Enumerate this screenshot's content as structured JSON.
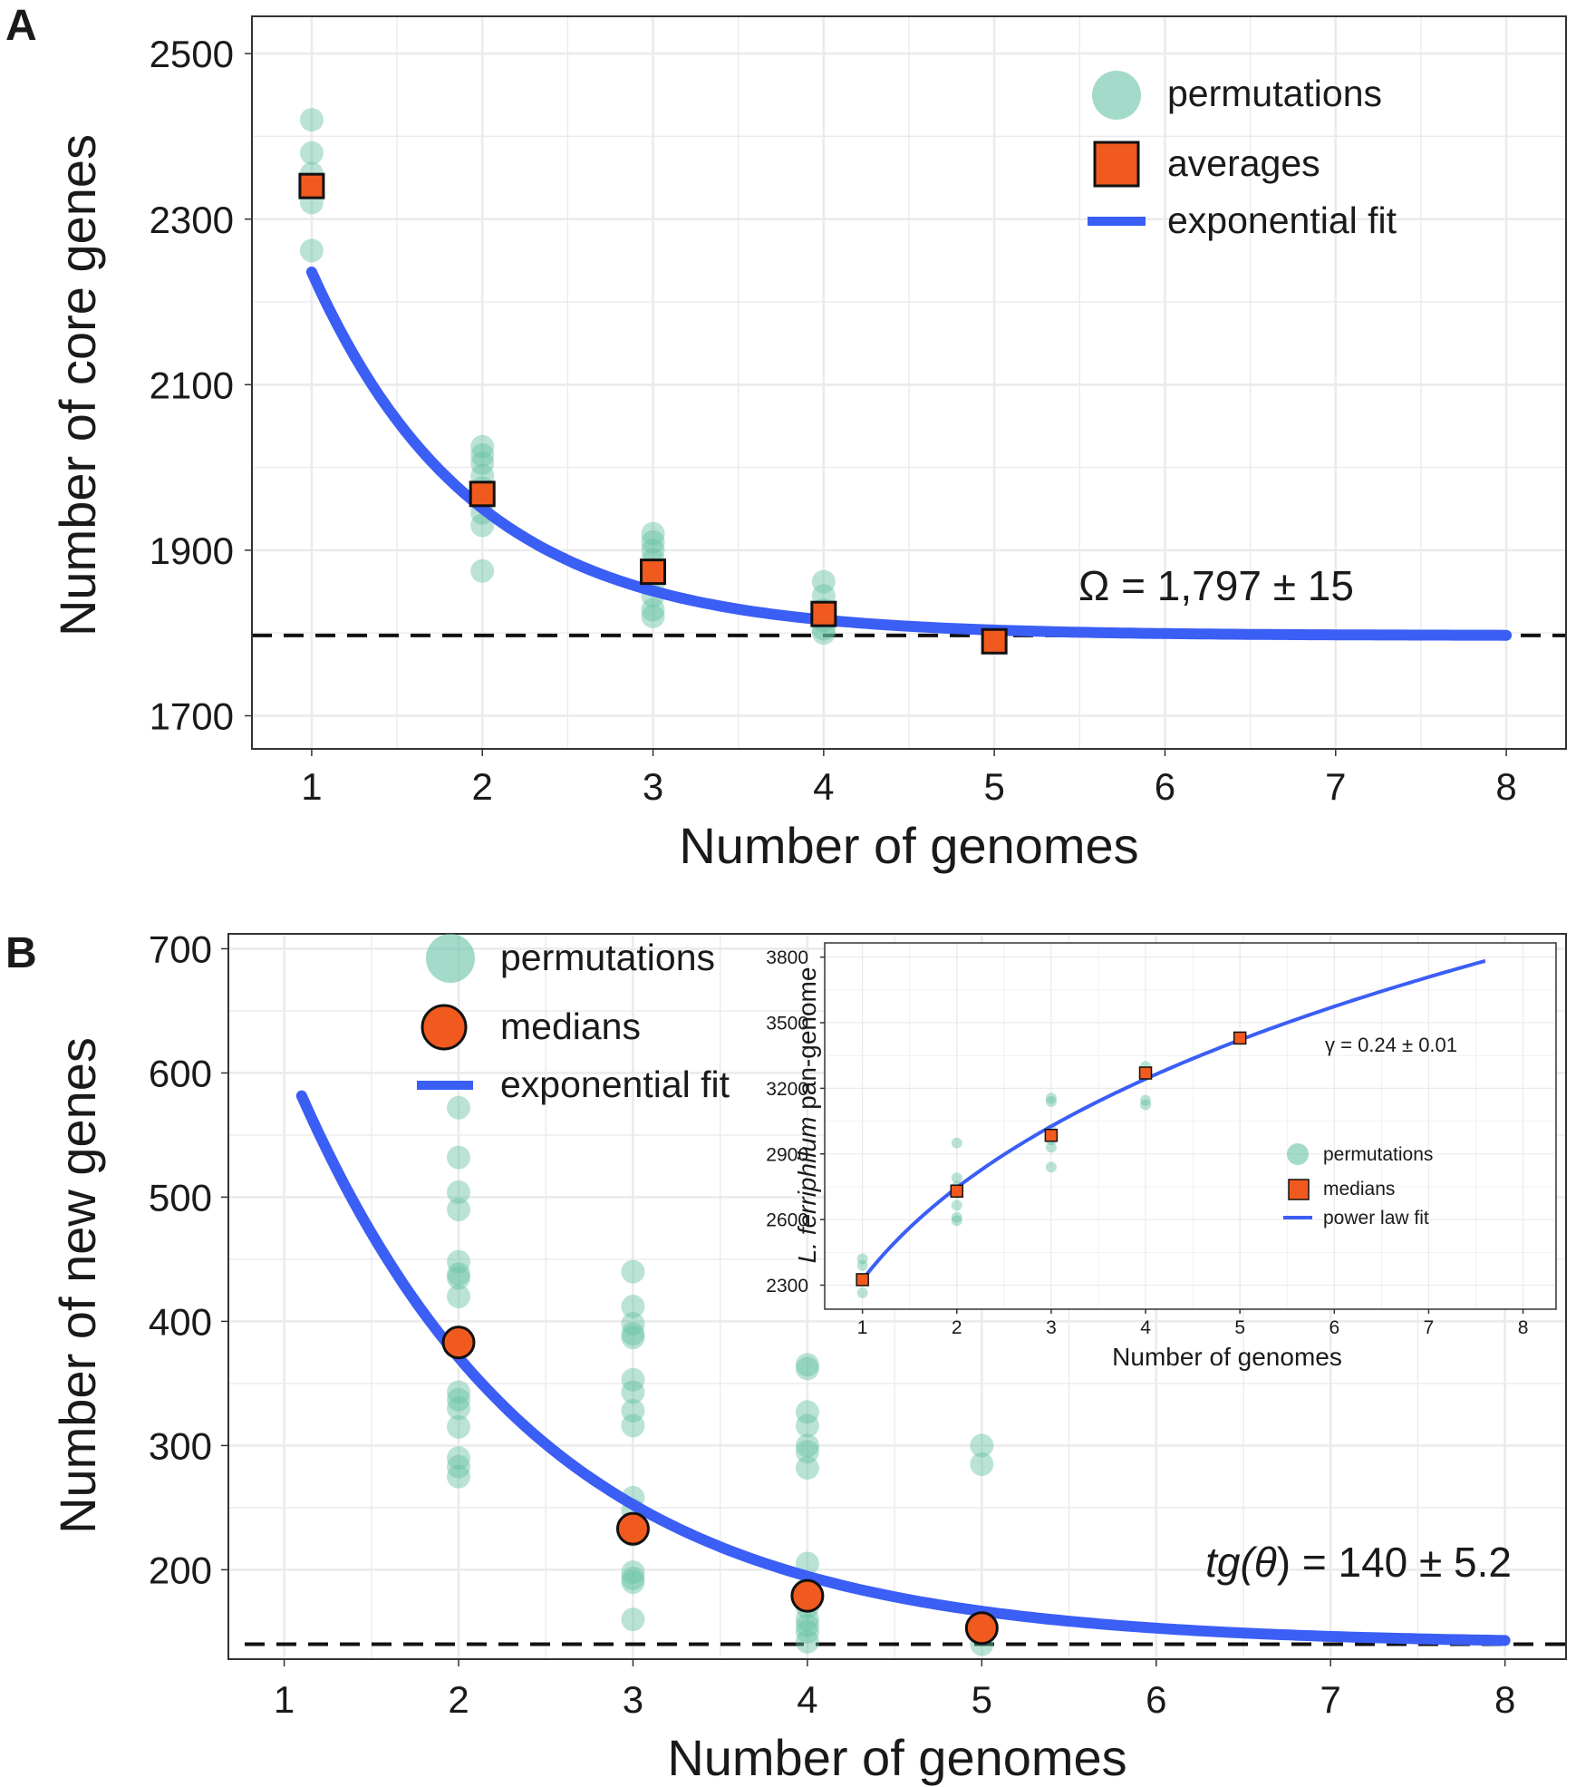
{
  "figure": {
    "panel_a_label": "A",
    "panel_b_label": "B"
  },
  "colors": {
    "permutation": "#66c2a5",
    "average": "#f05a1e",
    "fit": "#3b5ef5",
    "grid": "#ebebeb"
  },
  "chart_data": [
    {
      "id": "A",
      "type": "scatter",
      "title": "",
      "xlabel": "Number of genomes",
      "ylabel": "Number of core genes",
      "xlim": [
        0.65,
        8.35
      ],
      "ylim": [
        1660,
        2545
      ],
      "xticks": [
        1,
        2,
        3,
        4,
        5,
        6,
        7,
        8
      ],
      "yticks": [
        1700,
        1900,
        2100,
        2300,
        2500
      ],
      "grid": true,
      "legend_position": "top-right",
      "legend": [
        {
          "key": "permutations",
          "label": "permutations",
          "icon": "circle"
        },
        {
          "key": "averages",
          "label": "averages",
          "icon": "square"
        },
        {
          "key": "fit",
          "label": "exponential fit",
          "icon": "line"
        }
      ],
      "permutations": [
        {
          "x": 1,
          "y": [
            2420,
            2380,
            2355,
            2320,
            2262
          ]
        },
        {
          "x": 2,
          "y": [
            2025,
            2015,
            2005,
            1990,
            1975,
            1960,
            1945,
            1930,
            1875
          ]
        },
        {
          "x": 3,
          "y": [
            1920,
            1910,
            1900,
            1888,
            1875,
            1860,
            1845,
            1828,
            1820
          ]
        },
        {
          "x": 4,
          "y": [
            1862,
            1845,
            1828,
            1815,
            1805,
            1800
          ]
        },
        {
          "x": 5,
          "y": [
            1790
          ]
        }
      ],
      "averages": {
        "x": [
          1,
          2,
          3,
          4,
          5
        ],
        "y": [
          2340,
          1968,
          1874,
          1823,
          1790
        ]
      },
      "fit": {
        "model": "exponential",
        "x_range": [
          1,
          8
        ],
        "asymptote": 1797,
        "amplitude": 1255,
        "rate": 1.05
      },
      "asymptote_line": 1797,
      "annotation": "Ω = 1,797 ± 15"
    },
    {
      "id": "B",
      "type": "scatter",
      "title": "",
      "xlabel": "Number of genomes",
      "ylabel": "Number of new genes",
      "xlim": [
        0.68,
        8.35
      ],
      "ylim": [
        128,
        712
      ],
      "xticks": [
        1,
        2,
        3,
        4,
        5,
        6,
        7,
        8
      ],
      "yticks": [
        200,
        300,
        400,
        500,
        600,
        700
      ],
      "grid": true,
      "legend_position": "top-left",
      "legend": [
        {
          "key": "permutations",
          "label": "permutations",
          "icon": "circle"
        },
        {
          "key": "medians",
          "label": "medians",
          "icon": "circle"
        },
        {
          "key": "fit",
          "label": "exponential fit",
          "icon": "line"
        }
      ],
      "permutations": [
        {
          "x": 2,
          "y": [
            572,
            532,
            504,
            490,
            448,
            438,
            435,
            420,
            343,
            337,
            330,
            315,
            290,
            283,
            275
          ]
        },
        {
          "x": 3,
          "y": [
            440,
            412,
            398,
            390,
            387,
            353,
            343,
            328,
            316,
            258,
            248,
            228,
            198,
            193,
            190,
            160
          ]
        },
        {
          "x": 4,
          "y": [
            365,
            362,
            327,
            316,
            300,
            295,
            282,
            205,
            185,
            170,
            160,
            155,
            150,
            142
          ]
        },
        {
          "x": 5,
          "y": [
            300,
            285,
            150,
            140
          ]
        }
      ],
      "medians": {
        "x": [
          2,
          3,
          4,
          5
        ],
        "y": [
          383,
          233,
          179,
          153
        ]
      },
      "fit": {
        "model": "exponential",
        "x_range": [
          1.1,
          8
        ],
        "asymptote": 140,
        "amplitude": 975,
        "rate": 0.72
      },
      "asymptote_line": 140,
      "annotation_prefix": "tg(",
      "annotation_symbol": "θ",
      "annotation_suffix": ") = 140 ± 5.2"
    },
    {
      "id": "B-inset",
      "type": "scatter",
      "title": "",
      "xlabel": "Number of genomes",
      "ylabel_italic": "L. ferriphilum",
      "ylabel_rest": " pan-genome",
      "xlim": [
        0.6,
        8.35
      ],
      "ylim": [
        2190,
        3865
      ],
      "xticks": [
        1,
        2,
        3,
        4,
        5,
        6,
        7,
        8
      ],
      "yticks": [
        2300,
        2600,
        2900,
        3200,
        3500,
        3800
      ],
      "grid": true,
      "legend_position": "bottom-right",
      "legend": [
        {
          "key": "permutations",
          "label": "permutations",
          "icon": "circle"
        },
        {
          "key": "medians",
          "label": "medians",
          "icon": "square"
        },
        {
          "key": "fit",
          "label": "power law fit",
          "icon": "line"
        }
      ],
      "permutations": [
        {
          "x": 1,
          "y": [
            2420,
            2390,
            2330,
            2265
          ]
        },
        {
          "x": 2,
          "y": [
            2950,
            2790,
            2750,
            2720,
            2665,
            2610,
            2595
          ]
        },
        {
          "x": 3,
          "y": [
            3155,
            3140,
            3010,
            2965,
            2930,
            2840
          ]
        },
        {
          "x": 4,
          "y": [
            3300,
            3270,
            3145,
            3125
          ]
        },
        {
          "x": 5,
          "y": [
            3430
          ]
        }
      ],
      "medians": {
        "x": [
          1,
          2,
          3,
          4,
          5
        ],
        "y": [
          2325,
          2730,
          2985,
          3270,
          3430
        ]
      },
      "fit": {
        "model": "power",
        "x_range": [
          1,
          7.6
        ],
        "scale": 2325,
        "gamma": 0.24
      },
      "annotation": "γ = 0.24 ± 0.01"
    }
  ]
}
